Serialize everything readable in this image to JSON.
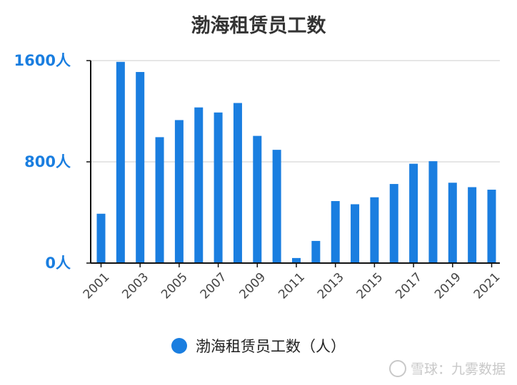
{
  "chart_data": {
    "type": "bar",
    "title": "渤海租赁员工数",
    "legend": "渤海租赁员工数（人）",
    "legend_position": "bottom",
    "categories": [
      "2001",
      "2002",
      "2003",
      "2004",
      "2005",
      "2006",
      "2007",
      "2008",
      "2009",
      "2010",
      "2011",
      "2012",
      "2013",
      "2014",
      "2015",
      "2016",
      "2017",
      "2018",
      "2019",
      "2020",
      "2021"
    ],
    "x_tick_labels": [
      "2001",
      "2003",
      "2005",
      "2007",
      "2009",
      "2011",
      "2013",
      "2015",
      "2017",
      "2019",
      "2021"
    ],
    "values": [
      390,
      1590,
      1510,
      995,
      1130,
      1230,
      1190,
      1265,
      1005,
      895,
      40,
      175,
      490,
      465,
      520,
      625,
      785,
      805,
      635,
      600,
      580
    ],
    "y_ticks": [
      {
        "value": 0,
        "label": "0人"
      },
      {
        "value": 800,
        "label": "800人"
      },
      {
        "value": 1600,
        "label": "1600人"
      }
    ],
    "ylim": [
      0,
      1600
    ],
    "grid": true,
    "bar_color": "#1a7ee0"
  },
  "watermark": "雪球：九雾数据"
}
